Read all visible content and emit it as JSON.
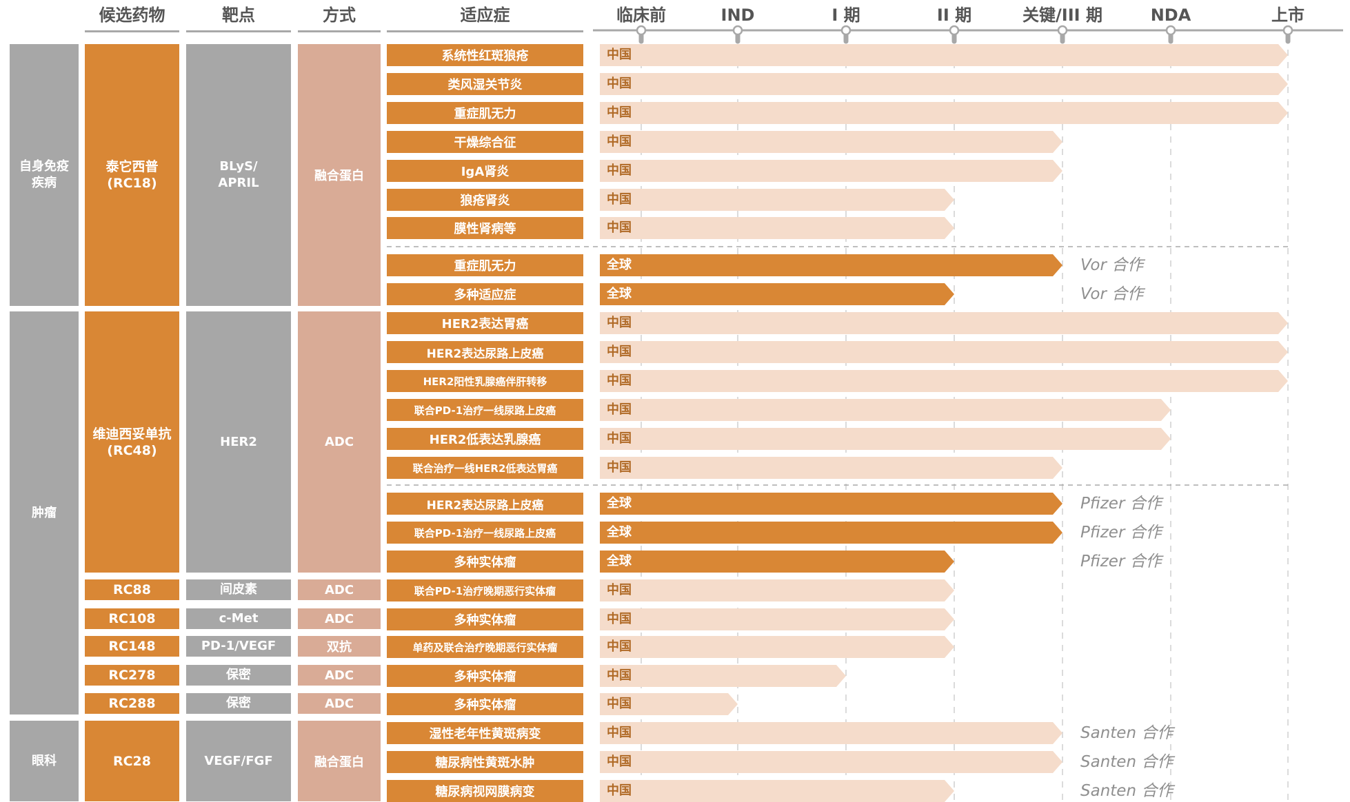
{
  "header": {
    "candidate": "候选药物",
    "target": "靶点",
    "modality": "方式",
    "indication": "适应症"
  },
  "phases": [
    "临床前",
    "IND",
    "I 期",
    "II 期",
    "关键/III 期",
    "NDA",
    "上市"
  ],
  "areas": [
    {
      "label": "自身免疫\n疾病"
    },
    {
      "label": "肿瘤"
    },
    {
      "label": "眼科"
    }
  ],
  "drugs": [
    {
      "label": "泰它西普\n(RC18)"
    },
    {
      "label": "维迪西妥单抗\n(RC48)"
    },
    {
      "label": "RC88"
    },
    {
      "label": "RC108"
    },
    {
      "label": "RC148"
    },
    {
      "label": "RC278"
    },
    {
      "label": "RC288"
    },
    {
      "label": "RC28"
    }
  ],
  "targets": [
    {
      "label": "BLyS/\nAPRIL"
    },
    {
      "label": "HER2"
    },
    {
      "label": "间皮素"
    },
    {
      "label": "c-Met"
    },
    {
      "label": "PD-1/VEGF"
    },
    {
      "label": "保密"
    },
    {
      "label": "保密"
    },
    {
      "label": "VEGF/FGF"
    }
  ],
  "modalities": [
    {
      "label": "融合蛋白"
    },
    {
      "label": "ADC"
    },
    {
      "label": "ADC"
    },
    {
      "label": "ADC"
    },
    {
      "label": "双抗"
    },
    {
      "label": "ADC"
    },
    {
      "label": "ADC"
    },
    {
      "label": "融合蛋白"
    }
  ],
  "colors": {
    "orange": "#d98735",
    "light_bar": "#f5dccb",
    "gray": "#a7a7a7",
    "pink": "#d9ab96",
    "partner_text": "#8f8f8f"
  },
  "chart_data": {
    "type": "bar",
    "x_scale": "development stage (临床前 → 上市)",
    "rows": [
      {
        "indication": "系统性红斑狼疮",
        "region": "中国",
        "stage": "上市",
        "partner": ""
      },
      {
        "indication": "类风湿关节炎",
        "region": "中国",
        "stage": "上市",
        "partner": ""
      },
      {
        "indication": "重症肌无力",
        "region": "中国",
        "stage": "上市",
        "partner": ""
      },
      {
        "indication": "干燥综合征",
        "region": "中国",
        "stage": "关键/III 期",
        "partner": ""
      },
      {
        "indication": "IgA肾炎",
        "region": "中国",
        "stage": "关键/III 期",
        "partner": ""
      },
      {
        "indication": "狼疮肾炎",
        "region": "中国",
        "stage": "II 期",
        "partner": ""
      },
      {
        "indication": "膜性肾病等",
        "region": "中国",
        "stage": "II 期",
        "partner": ""
      },
      {
        "indication": "重症肌无力",
        "region": "全球",
        "stage": "关键/III 期",
        "partner": "Vor 合作"
      },
      {
        "indication": "多种适应症",
        "region": "全球",
        "stage": "II 期",
        "partner": "Vor 合作"
      },
      {
        "indication": "HER2表达胃癌",
        "region": "中国",
        "stage": "上市",
        "partner": ""
      },
      {
        "indication": "HER2表达尿路上皮癌",
        "region": "中国",
        "stage": "上市",
        "partner": ""
      },
      {
        "indication": "HER2阳性乳腺癌伴肝转移",
        "region": "中国",
        "stage": "上市",
        "partner": ""
      },
      {
        "indication": "联合PD-1治疗一线尿路上皮癌",
        "region": "中国",
        "stage": "NDA",
        "partner": ""
      },
      {
        "indication": "HER2低表达乳腺癌",
        "region": "中国",
        "stage": "NDA",
        "partner": ""
      },
      {
        "indication": "联合治疗一线HER2低表达胃癌",
        "region": "中国",
        "stage": "关键/III 期",
        "partner": ""
      },
      {
        "indication": "HER2表达尿路上皮癌",
        "region": "全球",
        "stage": "关键/III 期",
        "partner": "Pfizer 合作"
      },
      {
        "indication": "联合PD-1治疗一线尿路上皮癌",
        "region": "全球",
        "stage": "关键/III 期",
        "partner": "Pfizer 合作"
      },
      {
        "indication": "多种实体瘤",
        "region": "全球",
        "stage": "II 期",
        "partner": "Pfizer 合作"
      },
      {
        "indication": "联合PD-1治疗晚期恶行实体瘤",
        "region": "中国",
        "stage": "II 期",
        "partner": ""
      },
      {
        "indication": "多种实体瘤",
        "region": "中国",
        "stage": "II 期",
        "partner": ""
      },
      {
        "indication": "单药及联合治疗晚期恶行实体瘤",
        "region": "中国",
        "stage": "II 期",
        "partner": ""
      },
      {
        "indication": "多种实体瘤",
        "region": "中国",
        "stage": "I 期",
        "partner": ""
      },
      {
        "indication": "多种实体瘤",
        "region": "中国",
        "stage": "IND",
        "partner": ""
      },
      {
        "indication": "湿性老年性黄斑病变",
        "region": "中国",
        "stage": "关键/III 期",
        "partner": "Santen 合作"
      },
      {
        "indication": "糖尿病性黄斑水肿",
        "region": "中国",
        "stage": "关键/III 期",
        "partner": "Santen 合作"
      },
      {
        "indication": "糖尿病视网膜病变",
        "region": "中国",
        "stage": "II 期",
        "partner": "Santen 合作"
      }
    ]
  }
}
